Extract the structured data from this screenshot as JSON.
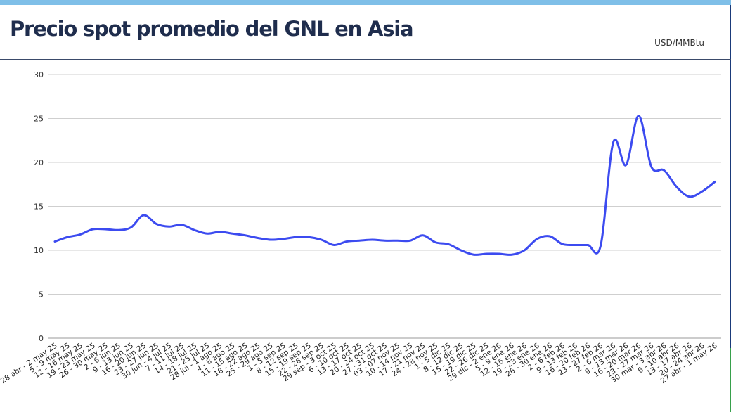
{
  "header": {
    "title": "Precio spot promedio del GNL en Asia",
    "unit": "USD/MMBtu"
  },
  "chart_data": {
    "type": "line",
    "title": "Precio spot promedio del GNL en Asia",
    "ylabel": "USD/MMBtu",
    "ylim": [
      0,
      30
    ],
    "yticks": [
      0,
      5,
      10,
      15,
      20,
      25,
      30
    ],
    "grid": true,
    "line_color": "#3c4bf0",
    "categories": [
      "28 abr - 2 may 25",
      "5 - 9 may 25",
      "12 - 16 may 25",
      "19 - 23 may 25",
      "26 - 30 may 25",
      "2 - 6 jun 25",
      "9 - 13 jun 25",
      "16 - 20 jun 25",
      "23 - 27 jun 25",
      "30 jun - 4 jul 25",
      "7 - 11 jul 25",
      "14 - 18 jul 25",
      "21 - 25 jul 25",
      "28 jul - 1 ago 25",
      "4 - 8 ago 25",
      "11 - 15 ago 25",
      "18 - 22 ago 25",
      "25 - 29 ago 25",
      "1 - 5 sep 25",
      "8 - 12 sep 25",
      "15 - 19 sep 25",
      "22 - 26 sep 25",
      "29 sep - 3 oct 25",
      "6 - 10 oct 25",
      "13 - 17 oct 25",
      "20 - 24 oct 25",
      "27 - 31 oct 25",
      "03 - 07 nov 25",
      "10 - 14 nov 25",
      "17 - 21 nov 25",
      "24 - 28 nov 25",
      "1 - 5 dic 25",
      "8 - 12 dic 25",
      "15 - 19 dic 25",
      "22 - 26 dic 25",
      "29 dic - 2 ene 26",
      "5 - 9 ene 26",
      "12 - 16 ene 26",
      "19 - 23 ene 26",
      "26 - 30 ene 26",
      "2 - 6 feb 26",
      "9 - 13 feb 26",
      "16 - 20 feb 26",
      "23 - 27 feb 26",
      "2 - 6 mar 26",
      "9 - 13 mar 26",
      "16 - 20 mar 26",
      "23 - 27 mar 26",
      "30 mar - 3 abr 26",
      "6 - 10 abr 26",
      "13 - 17 abr 26",
      "20 - 24 abr 26",
      "27 abr - 1 may 26"
    ],
    "series": [
      {
        "values": [
          11.0,
          11.5,
          11.8,
          12.4,
          12.4,
          12.3,
          12.6,
          14.0,
          13.0,
          12.7,
          12.9,
          12.3,
          11.9,
          12.1,
          11.9,
          11.7,
          11.4,
          11.2,
          11.3,
          11.5,
          11.5,
          11.2,
          10.6,
          11.0,
          11.1,
          11.2,
          11.1,
          11.1,
          11.1,
          11.7,
          10.9,
          10.7,
          10.0,
          9.5,
          9.6,
          9.6,
          9.5,
          10.0,
          11.3,
          11.6,
          10.7,
          10.6,
          10.6,
          10.5,
          22.3,
          19.7,
          25.3,
          19.5,
          19.1,
          17.2,
          16.1,
          16.7,
          17.8
        ]
      }
    ]
  }
}
